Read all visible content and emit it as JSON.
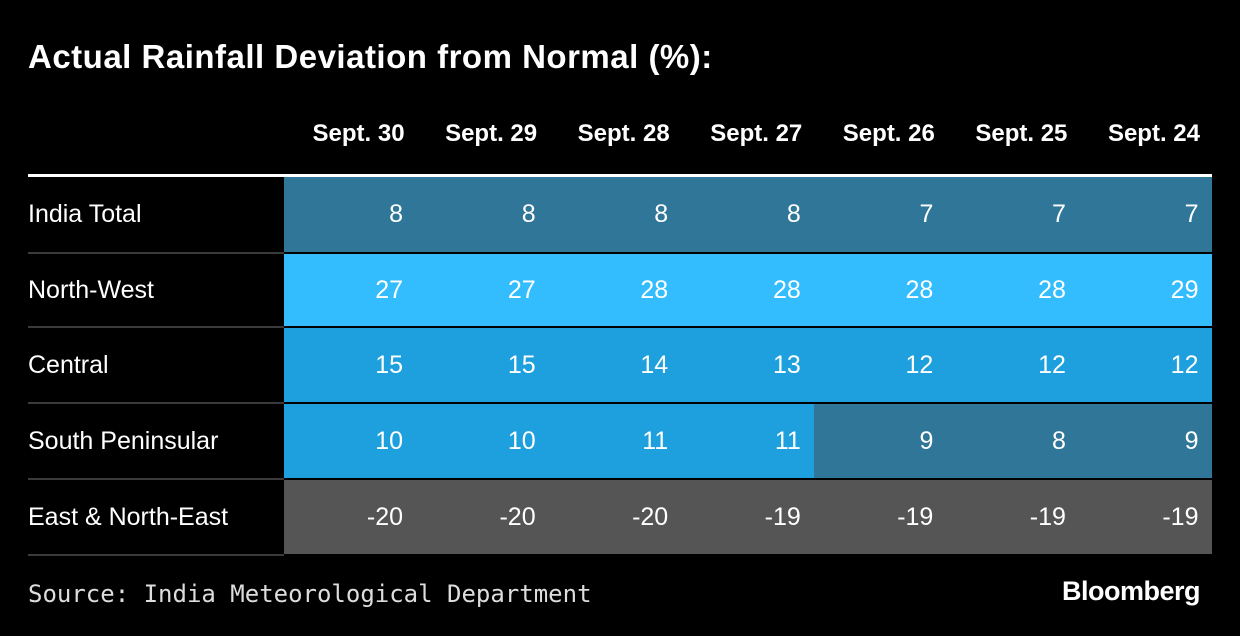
{
  "title": "Actual Rainfall Deviation from Normal (%):",
  "table": {
    "columns": [
      "Sept. 30",
      "Sept. 29",
      "Sept. 28",
      "Sept. 27",
      "Sept. 26",
      "Sept. 25",
      "Sept. 24"
    ],
    "rows": [
      {
        "label": "India Total",
        "values": [
          8,
          8,
          8,
          8,
          7,
          7,
          7
        ],
        "colors": [
          "#2f7699",
          "#2f7699",
          "#2f7699",
          "#2f7699",
          "#2f7699",
          "#2f7699",
          "#2f7699"
        ]
      },
      {
        "label": "North-West",
        "values": [
          27,
          27,
          28,
          28,
          28,
          28,
          29
        ],
        "colors": [
          "#33bdfe",
          "#33bdfe",
          "#33bdfe",
          "#33bdfe",
          "#33bdfe",
          "#33bdfe",
          "#33bdfe"
        ]
      },
      {
        "label": "Central",
        "values": [
          15,
          15,
          14,
          13,
          12,
          12,
          12
        ],
        "colors": [
          "#1fa0de",
          "#1fa0de",
          "#1fa0de",
          "#1fa0de",
          "#1fa0de",
          "#1fa0de",
          "#1fa0de"
        ]
      },
      {
        "label": "South Peninsular",
        "values": [
          10,
          10,
          11,
          11,
          9,
          8,
          9
        ],
        "colors": [
          "#1fa0de",
          "#1fa0de",
          "#1fa0de",
          "#1fa0de",
          "#2f7699",
          "#2f7699",
          "#2f7699"
        ]
      },
      {
        "label": "East & North-East",
        "values": [
          -20,
          -20,
          -20,
          -19,
          -19,
          -19,
          -19
        ],
        "colors": [
          "#555555",
          "#555555",
          "#555555",
          "#555555",
          "#555555",
          "#555555",
          "#555555"
        ]
      }
    ]
  },
  "source": "Source: India Meteorological Department",
  "logo": "Bloomberg"
}
